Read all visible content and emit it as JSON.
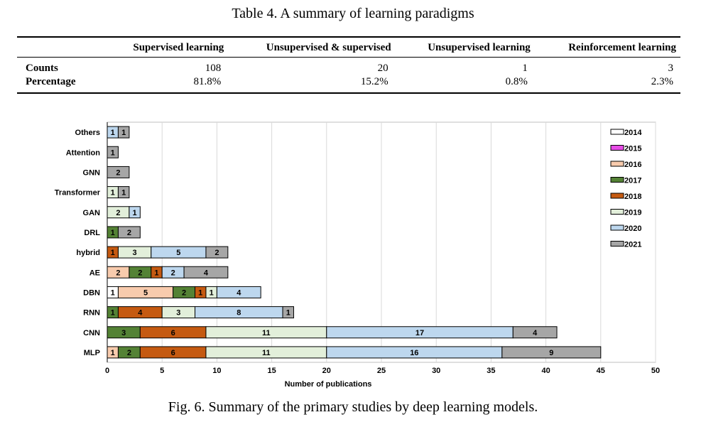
{
  "table": {
    "caption": "Table 4.  A summary of learning paradigms",
    "columns": [
      "Supervised learning",
      "Unsupervised & supervised",
      "Unsupervised learning",
      "Reinforcement learning"
    ],
    "rows": [
      {
        "label": "Counts",
        "values": [
          "108",
          "20",
          "1",
          "3"
        ]
      },
      {
        "label": "Percentage",
        "values": [
          "81.8%",
          "15.2%",
          "0.8%",
          "2.3%"
        ]
      }
    ]
  },
  "figure_caption": "Fig. 6.  Summary of the primary studies by deep learning models.",
  "chart_data": {
    "type": "bar",
    "orientation": "horizontal",
    "stacked": true,
    "xlabel": "Number of publications",
    "ylabel": "",
    "xlim": [
      0,
      50
    ],
    "xticks": [
      0,
      5,
      10,
      15,
      20,
      25,
      30,
      35,
      40,
      45,
      50
    ],
    "grid": "vertical",
    "legend_position": "right",
    "categories": [
      "Others",
      "Attention",
      "GNN",
      "Transformer",
      "GAN",
      "DRL",
      "hybrid",
      "AE",
      "DBN",
      "RNN",
      "CNN",
      "MLP"
    ],
    "series": [
      {
        "name": "2014",
        "color": "#ffffff",
        "values": [
          0,
          0,
          0,
          0,
          0,
          0,
          0,
          0,
          1,
          0,
          0,
          0
        ]
      },
      {
        "name": "2015",
        "color": "#e64ce6",
        "values": [
          0,
          0,
          0,
          0,
          0,
          0,
          0,
          0,
          0,
          0,
          0,
          0
        ]
      },
      {
        "name": "2016",
        "color": "#f8cbad",
        "values": [
          0,
          0,
          0,
          0,
          0,
          0,
          0,
          2,
          5,
          0,
          0,
          1
        ]
      },
      {
        "name": "2017",
        "color": "#548235",
        "values": [
          0,
          0,
          0,
          0,
          0,
          1,
          0,
          2,
          2,
          1,
          3,
          2
        ]
      },
      {
        "name": "2018",
        "color": "#c55a11",
        "values": [
          0,
          0,
          0,
          0,
          0,
          0,
          1,
          1,
          1,
          4,
          6,
          6
        ]
      },
      {
        "name": "2019",
        "color": "#e2efda",
        "values": [
          0,
          0,
          0,
          1,
          2,
          0,
          3,
          0,
          1,
          3,
          11,
          11
        ]
      },
      {
        "name": "2020",
        "color": "#bdd7ee",
        "values": [
          1,
          0,
          0,
          0,
          1,
          0,
          5,
          2,
          4,
          8,
          17,
          16
        ]
      },
      {
        "name": "2021",
        "color": "#a6a6a6",
        "values": [
          1,
          1,
          2,
          1,
          0,
          2,
          2,
          4,
          0,
          1,
          4,
          9
        ]
      }
    ]
  }
}
